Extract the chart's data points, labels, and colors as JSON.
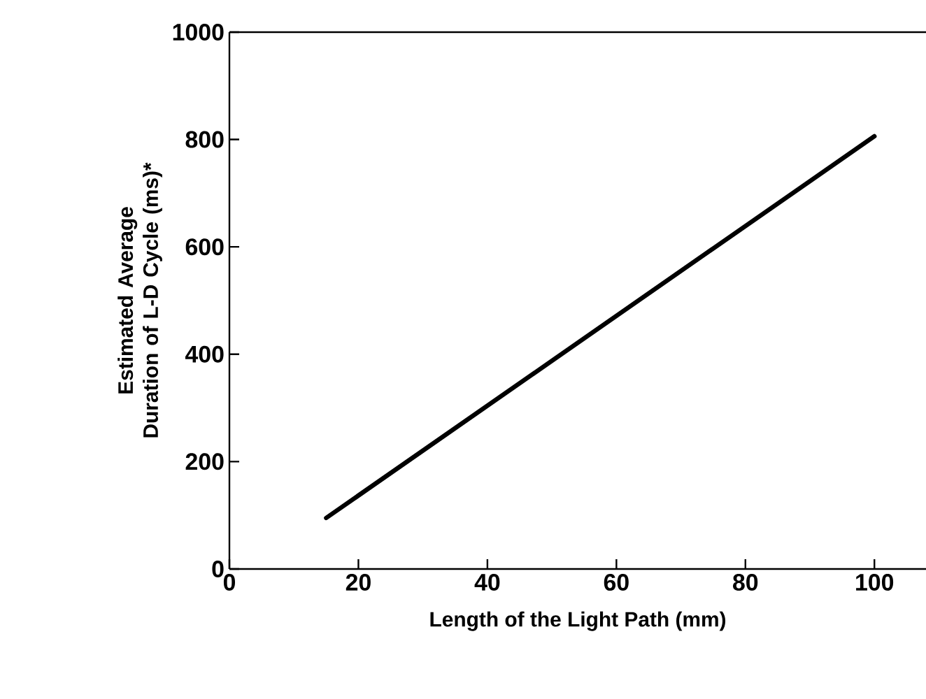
{
  "chart_data": {
    "type": "line",
    "xlabel": "Length of the Light Path (mm)",
    "ylabel": "Estimated Average Duration of L-D Cycle (ms)*",
    "series": [
      {
        "color": "#000000",
        "x": [
          15,
          100
        ],
        "values": [
          95,
          806
        ]
      }
    ],
    "xlim": [
      0,
      108
    ],
    "ylim": [
      0,
      1000
    ],
    "xticks": [
      0,
      20,
      40,
      60,
      80,
      100
    ],
    "yticks": [
      0,
      200,
      400,
      600,
      800,
      1000
    ],
    "grid": false,
    "marker": "none",
    "line_style": "solid"
  }
}
